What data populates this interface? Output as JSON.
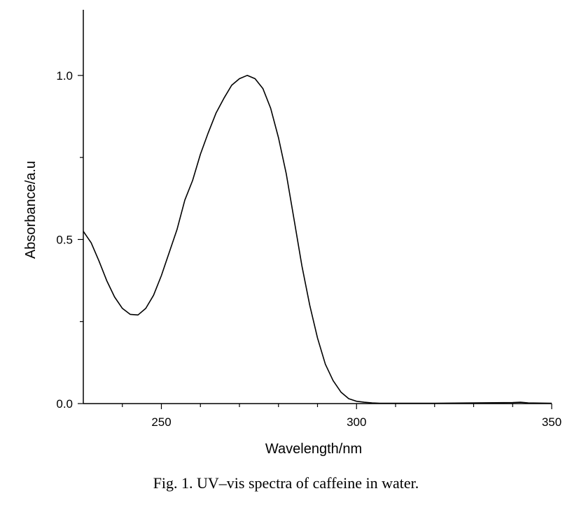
{
  "chart_data": {
    "type": "line",
    "xlabel": "Wavelength/nm",
    "ylabel": "Absorbance/a.u",
    "xlim": [
      230,
      350
    ],
    "ylim": [
      0,
      1.2
    ],
    "xticks": [
      250,
      300,
      350
    ],
    "xtick_labels": [
      "250",
      "300",
      "350"
    ],
    "yticks": [
      0,
      0.5,
      1.0
    ],
    "ytick_labels": [
      "0.0",
      "0.5",
      "1.0"
    ],
    "grid": false,
    "series": [
      {
        "x": [
          230,
          232,
          234,
          236,
          238,
          240,
          242,
          244,
          246,
          248,
          250,
          252,
          254,
          256,
          258,
          260,
          262,
          264,
          266,
          268,
          270,
          272,
          274,
          276,
          278,
          280,
          282,
          284,
          286,
          288,
          290,
          292,
          294,
          296,
          298,
          300,
          302,
          304,
          306,
          310,
          315,
          320,
          330,
          340,
          342,
          344,
          350
        ],
        "y": [
          0.525,
          0.49,
          0.435,
          0.375,
          0.325,
          0.29,
          0.272,
          0.27,
          0.29,
          0.33,
          0.39,
          0.46,
          0.53,
          0.62,
          0.68,
          0.76,
          0.825,
          0.885,
          0.93,
          0.97,
          0.99,
          1.0,
          0.99,
          0.96,
          0.9,
          0.81,
          0.7,
          0.56,
          0.42,
          0.3,
          0.2,
          0.12,
          0.07,
          0.035,
          0.015,
          0.007,
          0.004,
          0.002,
          0.001,
          0.001,
          0.001,
          0.001,
          0.002,
          0.003,
          0.004,
          0.002,
          0.001
        ],
        "color": "#000000"
      }
    ]
  },
  "caption": "Fig. 1.  UV–vis spectra of caffeine in water."
}
